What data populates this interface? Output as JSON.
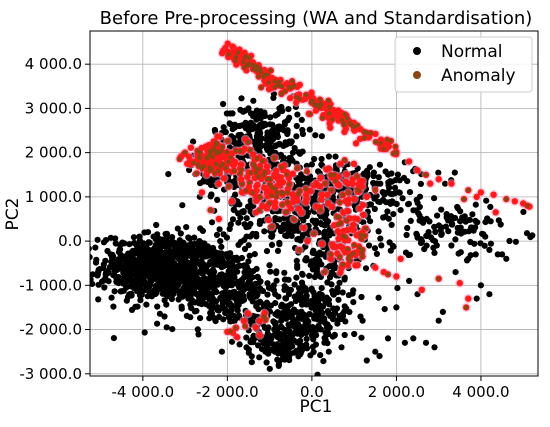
{
  "chart_data": {
    "type": "scatter",
    "title": "Before Pre-processing (WA and Standardisation)",
    "xlabel": "PC1",
    "ylabel": "PC2",
    "xlim": [
      -5250,
      5350
    ],
    "ylim": [
      -3050,
      4750
    ],
    "x_ticks": [
      -4000,
      -2000,
      0,
      2000,
      4000
    ],
    "y_ticks": [
      -3000,
      -2000,
      -1000,
      0,
      1000,
      2000,
      3000,
      4000
    ],
    "x_tick_labels": [
      "-4 000.0",
      "-2 000.0",
      "0.0",
      "2 000.0",
      "4 000.0"
    ],
    "y_tick_labels": [
      "-3 000.0",
      "-2 000.0",
      "-1 000.0",
      "0.0",
      "1 000.0",
      "2 000.0",
      "3 000.0",
      "4 000.0"
    ],
    "grid": true,
    "legend_position": "top-right",
    "series": [
      {
        "name": "Normal",
        "color": "#000000",
        "clusters": [
          {
            "cx": -3600,
            "cy": -600,
            "sx": 700,
            "sy": 380,
            "n": 700
          },
          {
            "cx": -2200,
            "cy": -1000,
            "sx": 700,
            "sy": 450,
            "n": 380
          },
          {
            "cx": -200,
            "cy": -1700,
            "sx": 600,
            "sy": 380,
            "n": 280
          },
          {
            "cx": -800,
            "cy": -2300,
            "sx": 450,
            "sy": 250,
            "n": 120
          },
          {
            "cx": -1200,
            "cy": 2400,
            "sx": 500,
            "sy": 350,
            "n": 200
          },
          {
            "cx": -1600,
            "cy": 1600,
            "sx": 600,
            "sy": 350,
            "n": 220
          },
          {
            "cx": 800,
            "cy": 1200,
            "sx": 900,
            "sy": 300,
            "n": 260
          },
          {
            "cx": -500,
            "cy": 600,
            "sx": 800,
            "sy": 450,
            "n": 250
          },
          {
            "cx": 500,
            "cy": -400,
            "sx": 600,
            "sy": 500,
            "n": 140
          },
          {
            "cx": 3200,
            "cy": 300,
            "sx": 900,
            "sy": 300,
            "n": 110
          }
        ],
        "points": [
          [
            -2100,
            3100
          ],
          [
            -1500,
            3000
          ],
          [
            -1300,
            2950
          ],
          [
            4200,
            -200
          ],
          [
            4400,
            -300
          ],
          [
            4500,
            -300
          ],
          [
            4600,
            -400
          ],
          [
            4100,
            100
          ],
          [
            3800,
            300
          ],
          [
            1500,
            -2500
          ],
          [
            1600,
            -2600
          ],
          [
            1800,
            -2200
          ],
          [
            2200,
            -2300
          ],
          [
            2400,
            -2200
          ],
          [
            2700,
            -2300
          ],
          [
            2900,
            -2400
          ],
          [
            3000,
            -1800
          ],
          [
            3100,
            -1600
          ],
          [
            3400,
            -700
          ],
          [
            3700,
            -400
          ],
          [
            3900,
            -1300
          ],
          [
            4000,
            -1000
          ],
          [
            4200,
            -1200
          ],
          [
            1200,
            -1800
          ],
          [
            1000,
            -2100
          ],
          [
            2000,
            -1500
          ],
          [
            2500,
            -1200
          ],
          [
            2300,
            -900
          ],
          [
            1300,
            -2700
          ],
          [
            700,
            -2400
          ],
          [
            -600,
            -2600
          ],
          [
            -1100,
            -2500
          ],
          [
            400,
            -2500
          ],
          [
            2600,
            500
          ],
          [
            3300,
            -100
          ],
          [
            -4550,
            -600
          ],
          [
            -4600,
            -500
          ],
          [
            1700,
            1100
          ],
          [
            1900,
            900
          ],
          [
            2100,
            700
          ]
        ]
      },
      {
        "name": "Anomaly",
        "color": "#8b4513",
        "highlight": "#ff1a1a",
        "clusters": [
          {
            "cx": -2300,
            "cy": 1850,
            "sx": 380,
            "sy": 200,
            "n": 140
          },
          {
            "cx": -1000,
            "cy": 1100,
            "sx": 300,
            "sy": 150,
            "n": 45
          },
          {
            "cx": -1200,
            "cy": 1500,
            "sx": 400,
            "sy": 200,
            "n": 60
          },
          {
            "cx": 800,
            "cy": -250,
            "sx": 250,
            "sy": 250,
            "n": 45
          },
          {
            "cx": 900,
            "cy": 300,
            "sx": 300,
            "sy": 300,
            "n": 35
          },
          {
            "cx": -500,
            "cy": 900,
            "sx": 400,
            "sy": 250,
            "n": 30
          },
          {
            "cx": 600,
            "cy": 1300,
            "sx": 400,
            "sy": 250,
            "n": 40
          },
          {
            "cx": -1400,
            "cy": -2000,
            "sx": 300,
            "sy": 200,
            "n": 15
          }
        ],
        "band": {
          "x0": -2100,
          "y0": 4350,
          "x1": 2000,
          "y1": 2000,
          "n": 230,
          "spread": 90
        },
        "points": [
          [
            -2100,
            4300
          ],
          [
            -1950,
            4250
          ],
          [
            -1800,
            4150
          ],
          [
            2300,
            1800
          ],
          [
            2500,
            1600
          ],
          [
            2700,
            1500
          ],
          [
            3000,
            1400
          ],
          [
            3300,
            1300
          ],
          [
            3700,
            1150
          ],
          [
            4000,
            1100
          ],
          [
            4300,
            1050
          ],
          [
            4600,
            950
          ],
          [
            4800,
            900
          ],
          [
            5000,
            850
          ],
          [
            5100,
            800
          ],
          [
            5150,
            780
          ],
          [
            2800,
            1300
          ],
          [
            3600,
            950
          ],
          [
            4350,
            650
          ],
          [
            3900,
            1000
          ],
          [
            1800,
            -750
          ],
          [
            2000,
            -800
          ],
          [
            2600,
            -1100
          ],
          [
            3000,
            -850
          ],
          [
            3500,
            -950
          ],
          [
            3700,
            -1300
          ],
          [
            3650,
            -1500
          ],
          [
            1700,
            -700
          ],
          [
            1500,
            -600
          ],
          [
            1200,
            -200
          ],
          [
            2100,
            -400
          ],
          [
            -2600,
            1100
          ],
          [
            -2400,
            700
          ],
          [
            -2200,
            500
          ],
          [
            -1900,
            900
          ],
          [
            -3000,
            2000
          ],
          [
            -3100,
            1900
          ],
          [
            -2950,
            1750
          ],
          [
            200,
            700
          ],
          [
            1000,
            950
          ],
          [
            1300,
            1000
          ],
          [
            1500,
            1150
          ],
          [
            -200,
            300
          ],
          [
            -100,
            0
          ],
          [
            -300,
            -200
          ]
        ]
      }
    ]
  }
}
